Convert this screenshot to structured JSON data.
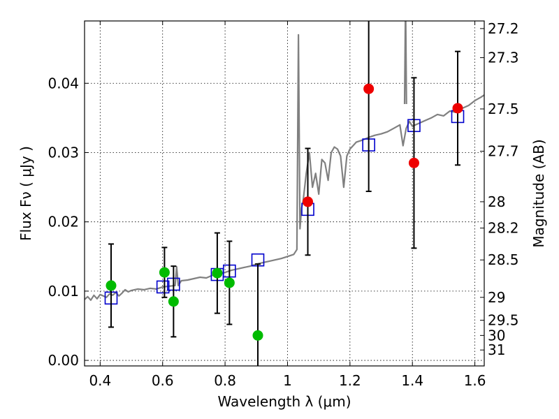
{
  "chart_data": {
    "type": "scatter",
    "xlabel": "Wavelength  λ (μm)",
    "ylabel": "Flux  Fν  ( μJy )",
    "y2label": "Magnitude (AB)",
    "xlim": [
      0.35,
      1.63
    ],
    "ylim": [
      -0.0008,
      0.049
    ],
    "grid": true,
    "x_ticks": [
      0.4,
      0.6,
      0.8,
      1.0,
      1.2,
      1.4,
      1.6
    ],
    "x_tick_labels": [
      "0.4",
      "0.6",
      "0.8",
      "1",
      "1.2",
      "1.4",
      "1.6"
    ],
    "y_ticks": [
      0.0,
      0.01,
      0.02,
      0.03,
      0.04
    ],
    "y_tick_labels": [
      "0.00",
      "0.01",
      "0.02",
      "0.03",
      "0.04"
    ],
    "y2_ticks": [
      {
        "label": "27.2",
        "flux": 0.0479
      },
      {
        "label": "27.3",
        "flux": 0.0437
      },
      {
        "label": "27.5",
        "flux": 0.0363
      },
      {
        "label": "27.7",
        "flux": 0.0302
      },
      {
        "label": "28",
        "flux": 0.0229
      },
      {
        "label": "28.2",
        "flux": 0.0191
      },
      {
        "label": "28.5",
        "flux": 0.0145
      },
      {
        "label": "29",
        "flux": 0.0091
      },
      {
        "label": "29.5",
        "flux": 0.0058
      },
      {
        "label": "30",
        "flux": 0.0036
      },
      {
        "label": "31",
        "flux": 0.0015
      }
    ],
    "series": [
      {
        "kind": "line",
        "color": "#808080",
        "x": [
          0.35,
          0.36,
          0.37,
          0.38,
          0.39,
          0.4,
          0.41,
          0.42,
          0.43,
          0.44,
          0.45,
          0.46,
          0.47,
          0.48,
          0.49,
          0.5,
          0.52,
          0.54,
          0.56,
          0.58,
          0.6,
          0.62,
          0.64,
          0.645,
          0.65,
          0.66,
          0.68,
          0.7,
          0.72,
          0.74,
          0.76,
          0.78,
          0.8,
          0.82,
          0.84,
          0.86,
          0.88,
          0.9,
          0.92,
          0.94,
          0.96,
          0.98,
          1.0,
          1.02,
          1.03,
          1.035,
          1.04,
          1.045,
          1.05,
          1.06,
          1.07,
          1.08,
          1.09,
          1.1,
          1.11,
          1.12,
          1.13,
          1.14,
          1.15,
          1.16,
          1.17,
          1.18,
          1.19,
          1.2,
          1.21,
          1.22,
          1.24,
          1.26,
          1.28,
          1.3,
          1.32,
          1.34,
          1.36,
          1.37,
          1.38,
          1.39,
          1.4,
          1.42,
          1.44,
          1.46,
          1.48,
          1.5,
          1.52,
          1.54,
          1.56,
          1.58,
          1.6,
          1.62,
          1.63
        ],
        "y": [
          0.0088,
          0.0092,
          0.0087,
          0.0094,
          0.0089,
          0.0095,
          0.0093,
          0.0091,
          0.0096,
          0.0094,
          0.0098,
          0.0093,
          0.0097,
          0.0102,
          0.0099,
          0.0101,
          0.0103,
          0.0102,
          0.0104,
          0.0103,
          0.0106,
          0.0107,
          0.0108,
          0.0135,
          0.0108,
          0.0115,
          0.0116,
          0.0118,
          0.012,
          0.0119,
          0.0123,
          0.0125,
          0.0127,
          0.013,
          0.0132,
          0.0134,
          0.0136,
          0.0139,
          0.0141,
          0.0143,
          0.0145,
          0.0147,
          0.015,
          0.0153,
          0.016,
          0.047,
          0.019,
          0.022,
          0.023,
          0.027,
          0.03,
          0.025,
          0.027,
          0.024,
          0.029,
          0.0285,
          0.026,
          0.03,
          0.0308,
          0.0305,
          0.0295,
          0.025,
          0.0295,
          0.0305,
          0.031,
          0.0315,
          0.0318,
          0.0322,
          0.0325,
          0.0327,
          0.033,
          0.0335,
          0.034,
          0.031,
          0.0335,
          0.0345,
          0.0338,
          0.0342,
          0.0346,
          0.035,
          0.0355,
          0.0353,
          0.036,
          0.0358,
          0.0364,
          0.0368,
          0.0375,
          0.038,
          0.0383
        ]
      },
      {
        "kind": "line",
        "color": "#808080",
        "x": [
          1.375,
          1.378,
          1.381
        ],
        "y": [
          0.037,
          0.052,
          0.037
        ]
      },
      {
        "kind": "markers",
        "marker": "square-open",
        "color": "#0000cc",
        "x": [
          0.435,
          0.601,
          0.635,
          0.775,
          0.814,
          0.905,
          1.065,
          1.26,
          1.405,
          1.545
        ],
        "y": [
          0.009,
          0.0106,
          0.011,
          0.0124,
          0.0129,
          0.0145,
          0.0218,
          0.0311,
          0.0339,
          0.0352
        ]
      },
      {
        "kind": "markers",
        "marker": "circle",
        "color": "#00bb00",
        "x": [
          0.435,
          0.606,
          0.635,
          0.775,
          0.814,
          0.905
        ],
        "y": [
          0.0108,
          0.0127,
          0.0085,
          0.0126,
          0.0112,
          0.0036
        ],
        "yerr": [
          0.006,
          0.0036,
          0.0051,
          0.0058,
          0.006,
          0.0103
        ]
      },
      {
        "kind": "markers",
        "marker": "circle",
        "color": "#ee0000",
        "x": [
          1.065,
          1.26,
          1.405,
          1.545
        ],
        "y": [
          0.0229,
          0.0392,
          0.0285,
          0.0364
        ],
        "yerr": [
          0.0077,
          0.0148,
          0.0123,
          0.0082
        ]
      }
    ]
  }
}
